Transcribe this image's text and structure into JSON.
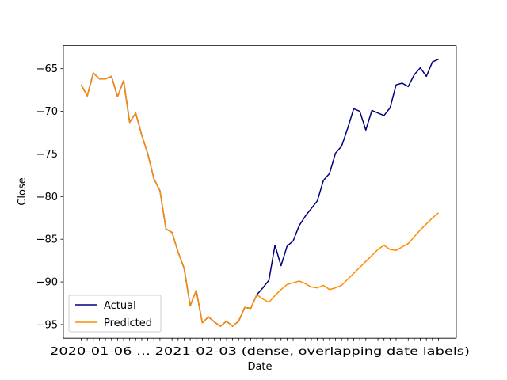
{
  "chart_data": {
    "type": "line",
    "title": "",
    "xlabel": "Date",
    "ylabel": "Close",
    "ylim": [
      -96.6,
      -62.3
    ],
    "yticks": [
      -95,
      -90,
      -85,
      -80,
      -75,
      -70,
      -65
    ],
    "x_tick_text": "2020-01-06 … 2021-02-03 (dense, overlapping date labels)",
    "legend": {
      "placement": "lower-left",
      "entries": [
        "Actual",
        "Predicted"
      ]
    },
    "grid": false,
    "series": [
      {
        "name": "Actual",
        "color": "#000080",
        "values": [
          -66.9,
          -68.2,
          -65.5,
          -66.2,
          -66.2,
          -65.9,
          -68.3,
          -66.4,
          -71.3,
          -70.2,
          -72.8,
          -75.0,
          -77.9,
          -79.3,
          -83.8,
          -84.2,
          -86.5,
          -88.4,
          -92.8,
          -91.0,
          -94.8,
          -94.1,
          -94.7,
          -95.2,
          -94.6,
          -95.2,
          -94.6,
          -93.0,
          -93.1,
          -91.5,
          -90.7,
          -89.8,
          -85.7,
          -88.1,
          -85.8,
          -85.2,
          -83.4,
          -82.3,
          -81.4,
          -80.5,
          -78.1,
          -77.3,
          -74.9,
          -74.1,
          -72.0,
          -69.7,
          -70.0,
          -72.2,
          -69.9,
          -70.2,
          -70.5,
          -69.6,
          -66.9,
          -66.7,
          -67.1,
          -65.7,
          -64.9,
          -65.9,
          -64.2,
          -63.9
        ]
      },
      {
        "name": "Predicted",
        "color": "#ff8c00",
        "values": [
          -66.9,
          -68.2,
          -65.5,
          -66.2,
          -66.2,
          -65.9,
          -68.3,
          -66.4,
          -71.3,
          -70.2,
          -72.8,
          -75.0,
          -77.9,
          -79.3,
          -83.8,
          -84.2,
          -86.5,
          -88.4,
          -92.8,
          -91.0,
          -94.8,
          -94.1,
          -94.7,
          -95.2,
          -94.6,
          -95.2,
          -94.6,
          -93.0,
          -93.1,
          -91.5,
          -92.0,
          -92.4,
          -91.6,
          -90.9,
          -90.3,
          -90.1,
          -89.9,
          -90.2,
          -90.6,
          -90.7,
          -90.4,
          -90.9,
          -90.7,
          -90.4,
          -89.7,
          -89.0,
          -88.3,
          -87.6,
          -86.9,
          -86.2,
          -85.7,
          -86.2,
          -86.3,
          -85.9,
          -85.5,
          -84.7,
          -83.9,
          -83.2,
          -82.5,
          -81.9
        ]
      }
    ]
  }
}
